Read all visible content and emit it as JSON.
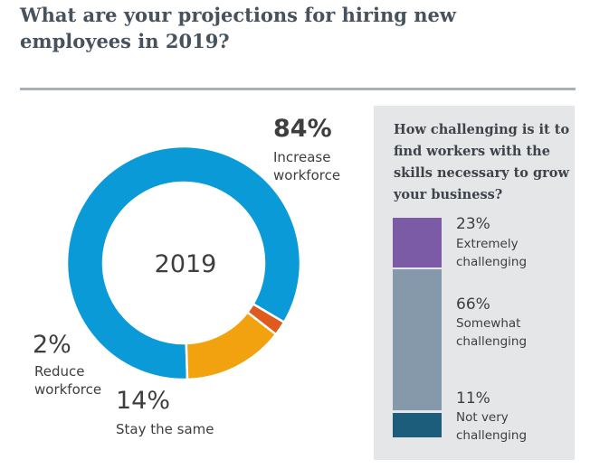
{
  "title": "What are your projections for hiring new employees in 2019?",
  "chart_data": [
    {
      "type": "pie",
      "style": "donut",
      "center_label": "2019",
      "slices": [
        {
          "name": "Increase workforce",
          "value": 84,
          "label": "84%",
          "desc": "Increase\nworkforce",
          "color": "#0a9ad8"
        },
        {
          "name": "Stay the same",
          "value": 14,
          "label": "14%",
          "desc": "Stay the same",
          "color": "#f2a20e"
        },
        {
          "name": "Reduce workforce",
          "value": 2,
          "label": "2%",
          "desc": "Reduce\nworkforce",
          "color": "#e05a1f"
        }
      ]
    },
    {
      "type": "bar",
      "orientation": "stacked-vertical",
      "title": "How challenging is it to find workers with the skills necessary to grow your business?",
      "series": [
        {
          "name": "Extremely challenging",
          "value": 23,
          "label": "23%",
          "desc": "Extremely\nchallenging",
          "color": "#7b5aa6"
        },
        {
          "name": "Somewhat challenging",
          "value": 66,
          "label": "66%",
          "desc": "Somewhat\nchallenging",
          "color": "#8699ab"
        },
        {
          "name": "Not very challenging",
          "value": 11,
          "label": "11%",
          "desc": "Not very\nchallenging",
          "color": "#1c5d7b"
        }
      ]
    }
  ]
}
